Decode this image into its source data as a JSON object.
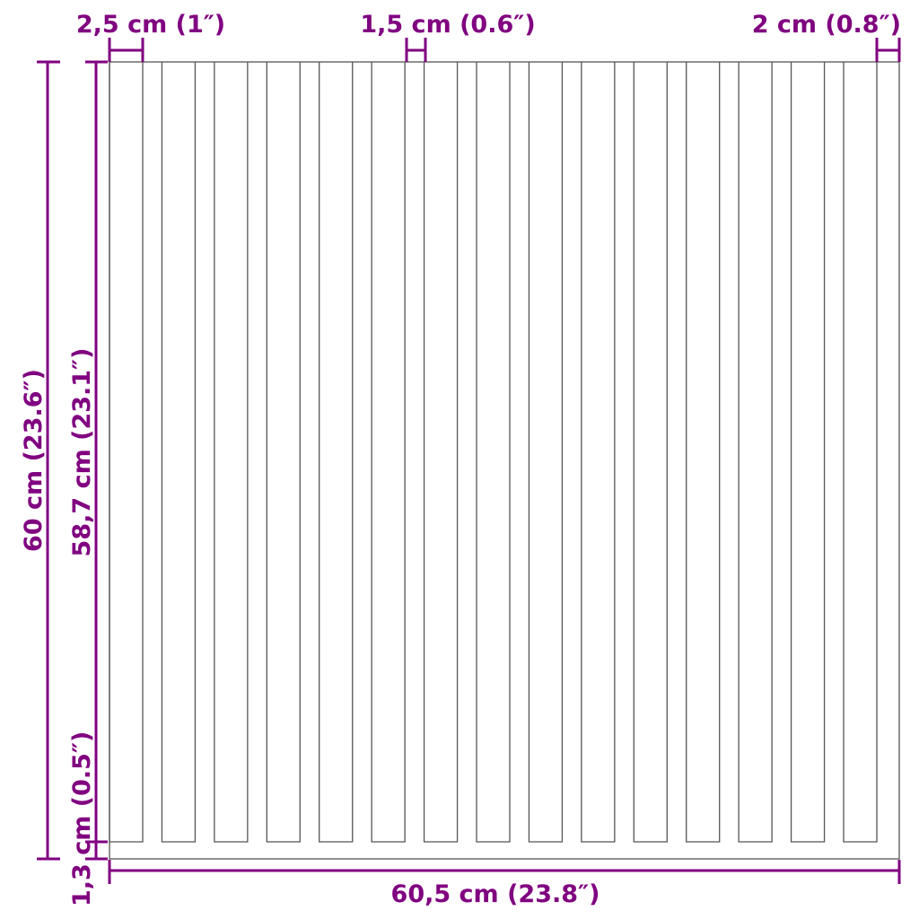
{
  "colors": {
    "dimension": "#800080",
    "outline": "#555555"
  },
  "slat_count": 15,
  "dimensions": {
    "slat_width": "2,5 cm (1″)",
    "gap_width": "1,5 cm (0.6″)",
    "edge_width": "2 cm (0.8″)",
    "total_height": "60 cm (23.6″)",
    "slat_height": "58,7 cm (23.1″)",
    "base_height": "1,3 cm (0.5″)",
    "total_width": "60,5 cm (23.8″)"
  }
}
